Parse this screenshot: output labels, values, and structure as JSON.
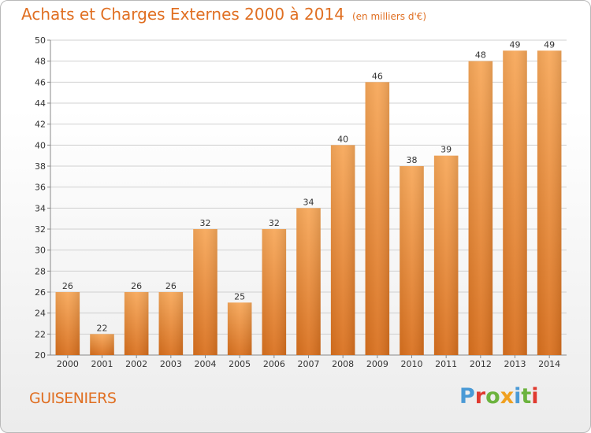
{
  "header": {
    "title": "Achats et Charges Externes 2000 à 2014",
    "unit": "(en milliers d'€)"
  },
  "commune": "GUISENIERS",
  "logo": {
    "text": "Proxiti",
    "letters": [
      "P",
      "r",
      "o",
      "x",
      "i",
      "t",
      "i"
    ],
    "colors": [
      "#4a9ad6",
      "#e03a2f",
      "#6cb33e",
      "#f0a020",
      "#4a9ad6",
      "#6cb33e",
      "#e03a2f"
    ]
  },
  "colors": {
    "accent": "#e06f22",
    "bar_top": "#f7a85a",
    "bar_bottom": "#d9701e",
    "grid": "#d0d0d0",
    "axis": "#8a8a8a"
  },
  "chart_data": {
    "type": "bar",
    "title": "Achats et Charges Externes 2000 à 2014",
    "subtitle": "(en milliers d'€)",
    "xlabel": "",
    "ylabel": "",
    "ylim": [
      20,
      50
    ],
    "yticks": [
      20,
      22,
      24,
      26,
      28,
      30,
      32,
      34,
      36,
      38,
      40,
      42,
      44,
      46,
      48,
      50
    ],
    "grid": true,
    "categories": [
      "2000",
      "2001",
      "2002",
      "2003",
      "2004",
      "2005",
      "2006",
      "2007",
      "2008",
      "2009",
      "2010",
      "2011",
      "2012",
      "2013",
      "2014"
    ],
    "values": [
      26,
      22,
      26,
      26,
      32,
      25,
      32,
      34,
      40,
      46,
      38,
      39,
      48,
      49,
      49
    ]
  }
}
